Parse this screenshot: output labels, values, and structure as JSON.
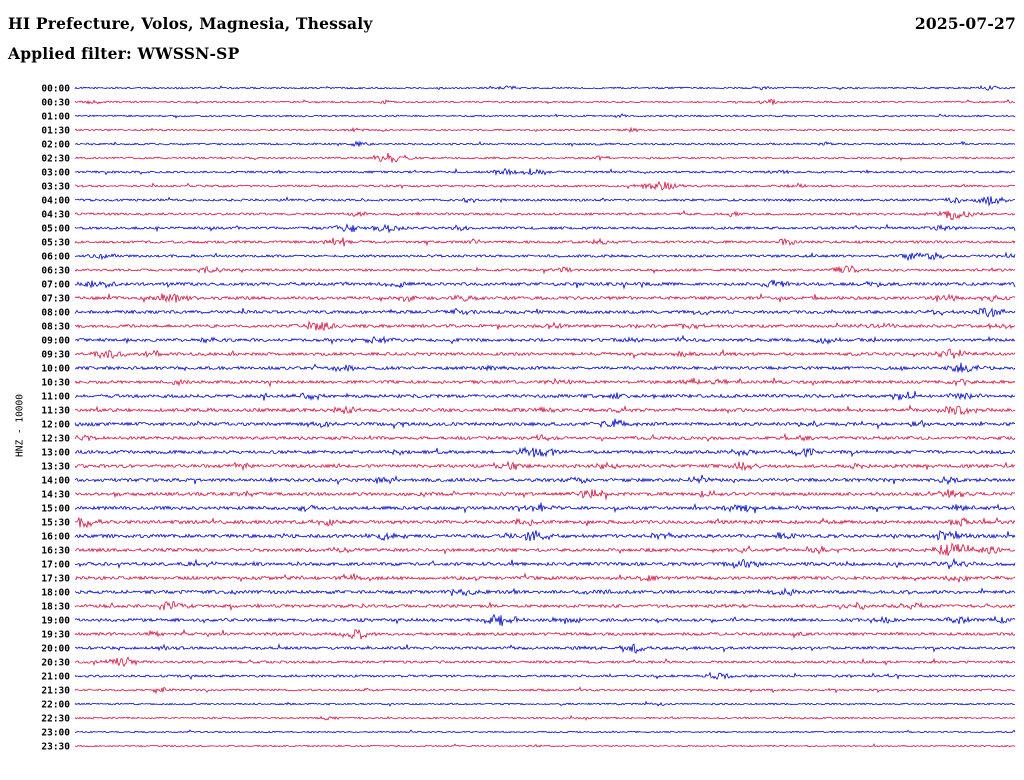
{
  "header": {
    "title": "HI Prefecture, Volos, Magnesia, Thessaly",
    "date": "2025-07-27",
    "filter_label": "Applied filter: WWSSN-SP"
  },
  "axis": {
    "left_label": "HNZ - 10000"
  },
  "chart_data": {
    "type": "seismogram-helicorder",
    "title": "HI Prefecture, Volos, Magnesia, Thessaly",
    "date": "2025-07-27",
    "filter": "WWSSN-SP",
    "channel": "HNZ",
    "scale": 10000,
    "row_interval_minutes": 30,
    "x_axis": {
      "span_minutes": 30,
      "tick_labels": []
    },
    "grid": false,
    "legend": "none",
    "colors": {
      "blue": "#0008c8",
      "red": "#d41442"
    },
    "rows": [
      {
        "time": "00:00",
        "color": "blue",
        "noise": 0.8,
        "bursts": [
          [
            0.46,
            2
          ],
          [
            0.73,
            2
          ],
          [
            0.97,
            2.5
          ]
        ]
      },
      {
        "time": "00:30",
        "color": "red",
        "noise": 0.8,
        "bursts": [
          [
            0.02,
            2
          ],
          [
            0.33,
            1.5
          ],
          [
            0.74,
            2.5
          ]
        ]
      },
      {
        "time": "01:00",
        "color": "blue",
        "noise": 0.8,
        "bursts": [
          [
            0.58,
            1.5
          ],
          [
            0.92,
            1.5
          ]
        ]
      },
      {
        "time": "01:30",
        "color": "red",
        "noise": 0.8,
        "bursts": [
          [
            0.3,
            1.5
          ],
          [
            0.59,
            2
          ]
        ]
      },
      {
        "time": "02:00",
        "color": "blue",
        "noise": 0.9,
        "bursts": [
          [
            0.3,
            2
          ],
          [
            0.56,
            1.5
          ],
          [
            0.8,
            1.5
          ]
        ]
      },
      {
        "time": "02:30",
        "color": "red",
        "noise": 0.9,
        "bursts": [
          [
            0.335,
            5
          ],
          [
            0.56,
            1.5
          ]
        ]
      },
      {
        "time": "03:00",
        "color": "blue",
        "noise": 1.0,
        "bursts": [
          [
            0.455,
            3
          ],
          [
            0.49,
            3.5
          ],
          [
            0.75,
            2
          ]
        ]
      },
      {
        "time": "03:30",
        "color": "red",
        "noise": 1.0,
        "bursts": [
          [
            0.62,
            5
          ],
          [
            0.77,
            2
          ]
        ]
      },
      {
        "time": "04:00",
        "color": "blue",
        "noise": 1.1,
        "bursts": [
          [
            0.42,
            2
          ],
          [
            0.935,
            3
          ],
          [
            0.975,
            4.5
          ]
        ]
      },
      {
        "time": "04:30",
        "color": "red",
        "noise": 1.1,
        "bursts": [
          [
            0.3,
            2.5
          ],
          [
            0.7,
            2
          ],
          [
            0.935,
            5.5
          ]
        ]
      },
      {
        "time": "05:00",
        "color": "blue",
        "noise": 1.2,
        "bursts": [
          [
            0.29,
            3.5
          ],
          [
            0.33,
            4
          ],
          [
            0.41,
            2.5
          ],
          [
            0.92,
            3.5
          ]
        ]
      },
      {
        "time": "05:30",
        "color": "red",
        "noise": 1.2,
        "bursts": [
          [
            0.285,
            4.5
          ],
          [
            0.425,
            2.5
          ],
          [
            0.56,
            2.5
          ],
          [
            0.76,
            3
          ]
        ]
      },
      {
        "time": "06:00",
        "color": "blue",
        "noise": 1.2,
        "bursts": [
          [
            0.03,
            3
          ],
          [
            0.89,
            3.5
          ],
          [
            0.915,
            3
          ],
          [
            0.995,
            3
          ]
        ]
      },
      {
        "time": "06:30",
        "color": "red",
        "noise": 1.2,
        "bursts": [
          [
            0.14,
            3.5
          ],
          [
            0.52,
            2
          ],
          [
            0.82,
            4
          ]
        ]
      },
      {
        "time": "07:00",
        "color": "blue",
        "noise": 1.5,
        "bursts": [
          [
            0.025,
            4
          ],
          [
            0.34,
            3
          ],
          [
            0.745,
            3.5
          ],
          [
            0.85,
            2.5
          ]
        ]
      },
      {
        "time": "07:30",
        "color": "red",
        "noise": 1.5,
        "bursts": [
          [
            0.1,
            5
          ],
          [
            0.35,
            2.5
          ],
          [
            0.415,
            2.5
          ],
          [
            0.925,
            3.5
          ],
          [
            0.975,
            3
          ]
        ]
      },
      {
        "time": "08:00",
        "color": "blue",
        "noise": 1.5,
        "bursts": [
          [
            0.41,
            3
          ],
          [
            0.665,
            2.5
          ],
          [
            0.915,
            3
          ],
          [
            0.975,
            4.5
          ]
        ]
      },
      {
        "time": "08:30",
        "color": "red",
        "noise": 1.5,
        "bursts": [
          [
            0.26,
            4.5
          ],
          [
            0.505,
            3
          ],
          [
            0.655,
            2.5
          ],
          [
            0.86,
            2.5
          ],
          [
            0.985,
            3.5
          ]
        ]
      },
      {
        "time": "09:00",
        "color": "blue",
        "noise": 1.5,
        "bursts": [
          [
            0.14,
            2
          ],
          [
            0.325,
            3.5
          ],
          [
            0.59,
            2.5
          ],
          [
            0.8,
            3.5
          ]
        ]
      },
      {
        "time": "09:30",
        "color": "red",
        "noise": 1.5,
        "bursts": [
          [
            0.035,
            4
          ],
          [
            0.085,
            3
          ],
          [
            0.645,
            2.5
          ],
          [
            0.935,
            4.5
          ]
        ]
      },
      {
        "time": "10:00",
        "color": "blue",
        "noise": 1.5,
        "bursts": [
          [
            0.285,
            3.5
          ],
          [
            0.445,
            2.5
          ],
          [
            0.945,
            4.5
          ]
        ]
      },
      {
        "time": "10:30",
        "color": "red",
        "noise": 1.5,
        "bursts": [
          [
            0.11,
            2.5
          ],
          [
            0.515,
            2.5
          ],
          [
            0.655,
            3
          ],
          [
            0.69,
            2.5
          ],
          [
            0.94,
            3
          ]
        ]
      },
      {
        "time": "11:00",
        "color": "blue",
        "noise": 1.6,
        "bursts": [
          [
            0.25,
            3
          ],
          [
            0.575,
            2.5
          ],
          [
            0.88,
            4
          ],
          [
            0.945,
            3.5
          ]
        ]
      },
      {
        "time": "11:30",
        "color": "red",
        "noise": 1.6,
        "bursts": [
          [
            0.29,
            3.5
          ],
          [
            0.5,
            2.5
          ],
          [
            0.58,
            2.5
          ],
          [
            0.94,
            4.5
          ]
        ]
      },
      {
        "time": "12:00",
        "color": "blue",
        "noise": 1.6,
        "bursts": [
          [
            0.015,
            2.5
          ],
          [
            0.26,
            3
          ],
          [
            0.575,
            4.5
          ],
          [
            0.785,
            3
          ],
          [
            0.895,
            3
          ]
        ]
      },
      {
        "time": "12:30",
        "color": "red",
        "noise": 1.5,
        "bursts": [
          [
            0.01,
            3
          ],
          [
            0.495,
            3
          ],
          [
            0.775,
            2.5
          ]
        ]
      },
      {
        "time": "13:00",
        "color": "blue",
        "noise": 1.6,
        "bursts": [
          [
            0.345,
            2.5
          ],
          [
            0.49,
            5.5
          ],
          [
            0.71,
            3
          ],
          [
            0.775,
            3.5
          ]
        ]
      },
      {
        "time": "13:30",
        "color": "red",
        "noise": 1.6,
        "bursts": [
          [
            0.175,
            2.5
          ],
          [
            0.46,
            4.5
          ],
          [
            0.565,
            3
          ],
          [
            0.71,
            3.5
          ],
          [
            0.835,
            2.5
          ]
        ]
      },
      {
        "time": "14:00",
        "color": "blue",
        "noise": 1.6,
        "bursts": [
          [
            0.325,
            3.5
          ],
          [
            0.535,
            3
          ],
          [
            0.665,
            3
          ],
          [
            0.93,
            3
          ]
        ]
      },
      {
        "time": "14:30",
        "color": "red",
        "noise": 1.6,
        "bursts": [
          [
            0.05,
            2.5
          ],
          [
            0.185,
            2.5
          ],
          [
            0.55,
            4.5
          ],
          [
            0.67,
            3
          ],
          [
            0.93,
            4.5
          ]
        ]
      },
      {
        "time": "15:00",
        "color": "blue",
        "noise": 1.6,
        "bursts": [
          [
            0.245,
            2.5
          ],
          [
            0.49,
            4.5
          ],
          [
            0.71,
            4.5
          ],
          [
            0.94,
            3
          ]
        ]
      },
      {
        "time": "15:30",
        "color": "red",
        "noise": 1.7,
        "bursts": [
          [
            0.01,
            4.5
          ],
          [
            0.27,
            3
          ],
          [
            0.48,
            3
          ],
          [
            0.94,
            3.5
          ]
        ]
      },
      {
        "time": "16:00",
        "color": "blue",
        "noise": 1.7,
        "bursts": [
          [
            0.33,
            4
          ],
          [
            0.49,
            5.5
          ],
          [
            0.625,
            3
          ],
          [
            0.755,
            3.5
          ],
          [
            0.93,
            5.5
          ]
        ]
      },
      {
        "time": "16:30",
        "color": "red",
        "noise": 1.6,
        "bursts": [
          [
            0.28,
            2.5
          ],
          [
            0.79,
            3.5
          ],
          [
            0.935,
            6
          ],
          [
            0.975,
            4
          ]
        ]
      },
      {
        "time": "17:00",
        "color": "blue",
        "noise": 1.6,
        "bursts": [
          [
            0.135,
            3
          ],
          [
            0.71,
            4.5
          ],
          [
            0.935,
            4.5
          ]
        ]
      },
      {
        "time": "17:30",
        "color": "red",
        "noise": 1.6,
        "bursts": [
          [
            0.3,
            3.5
          ],
          [
            0.61,
            2.5
          ],
          [
            0.94,
            3
          ]
        ]
      },
      {
        "time": "18:00",
        "color": "blue",
        "noise": 1.6,
        "bursts": [
          [
            0.415,
            3
          ],
          [
            0.555,
            2.5
          ],
          [
            0.755,
            3.5
          ]
        ]
      },
      {
        "time": "18:30",
        "color": "red",
        "noise": 1.5,
        "bursts": [
          [
            0.1,
            4.5
          ],
          [
            0.835,
            3
          ],
          [
            0.89,
            2.5
          ]
        ]
      },
      {
        "time": "19:00",
        "color": "blue",
        "noise": 1.5,
        "bursts": [
          [
            0.455,
            5.5
          ],
          [
            0.525,
            3
          ],
          [
            0.865,
            2.5
          ],
          [
            0.94,
            3
          ],
          [
            0.985,
            3
          ]
        ]
      },
      {
        "time": "19:30",
        "color": "red",
        "noise": 1.4,
        "bursts": [
          [
            0.08,
            2.5
          ],
          [
            0.3,
            4.5
          ]
        ]
      },
      {
        "time": "20:00",
        "color": "blue",
        "noise": 1.3,
        "bursts": [
          [
            0.095,
            3
          ],
          [
            0.54,
            2.5
          ],
          [
            0.595,
            4.5
          ]
        ]
      },
      {
        "time": "20:30",
        "color": "red",
        "noise": 1.2,
        "bursts": [
          [
            0.05,
            4.5
          ]
        ]
      },
      {
        "time": "21:00",
        "color": "blue",
        "noise": 1.1,
        "bursts": [
          [
            0.685,
            3.5
          ],
          [
            0.87,
            2
          ]
        ]
      },
      {
        "time": "21:30",
        "color": "red",
        "noise": 1.0,
        "bursts": [
          [
            0.09,
            2.5
          ]
        ]
      },
      {
        "time": "22:00",
        "color": "blue",
        "noise": 0.8,
        "bursts": [
          [
            0.62,
            1.5
          ]
        ]
      },
      {
        "time": "22:30",
        "color": "red",
        "noise": 0.8,
        "bursts": [
          [
            0.27,
            2
          ]
        ]
      },
      {
        "time": "23:00",
        "color": "blue",
        "noise": 0.7,
        "bursts": []
      },
      {
        "time": "23:30",
        "color": "red",
        "noise": 0.7,
        "bursts": [
          [
            0.5,
            1
          ]
        ]
      }
    ]
  }
}
